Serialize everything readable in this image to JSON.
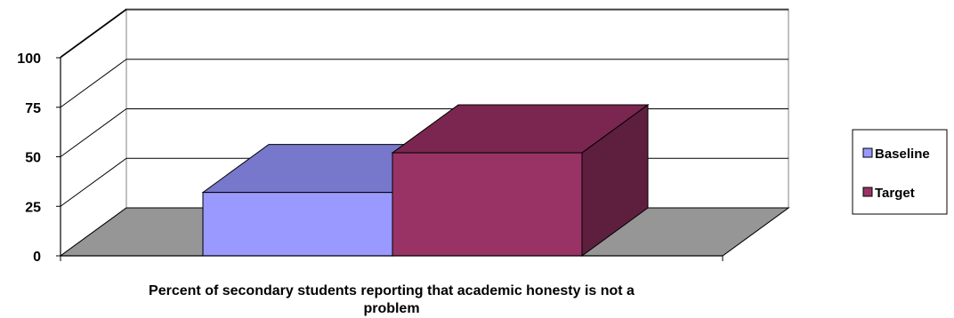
{
  "chart_data": {
    "type": "bar",
    "style": "3d-clustered",
    "title": "",
    "xlabel_lines": [
      "Percent of secondary students reporting that academic honesty is not a",
      "problem"
    ],
    "ylabel": "",
    "ylim": [
      0,
      100
    ],
    "yticks": [
      "0",
      "25",
      "50",
      "75",
      "100"
    ],
    "grid": true,
    "legend_position": "right",
    "series": [
      {
        "name": "Baseline",
        "value": 32,
        "color": "#9999ff",
        "top_color": "#7777cc",
        "side_color": "#6666b3"
      },
      {
        "name": "Target",
        "value": 52,
        "color": "#993366",
        "top_color": "#7a2650",
        "side_color": "#5e1f3e"
      }
    ],
    "floor_color": "#969696"
  }
}
